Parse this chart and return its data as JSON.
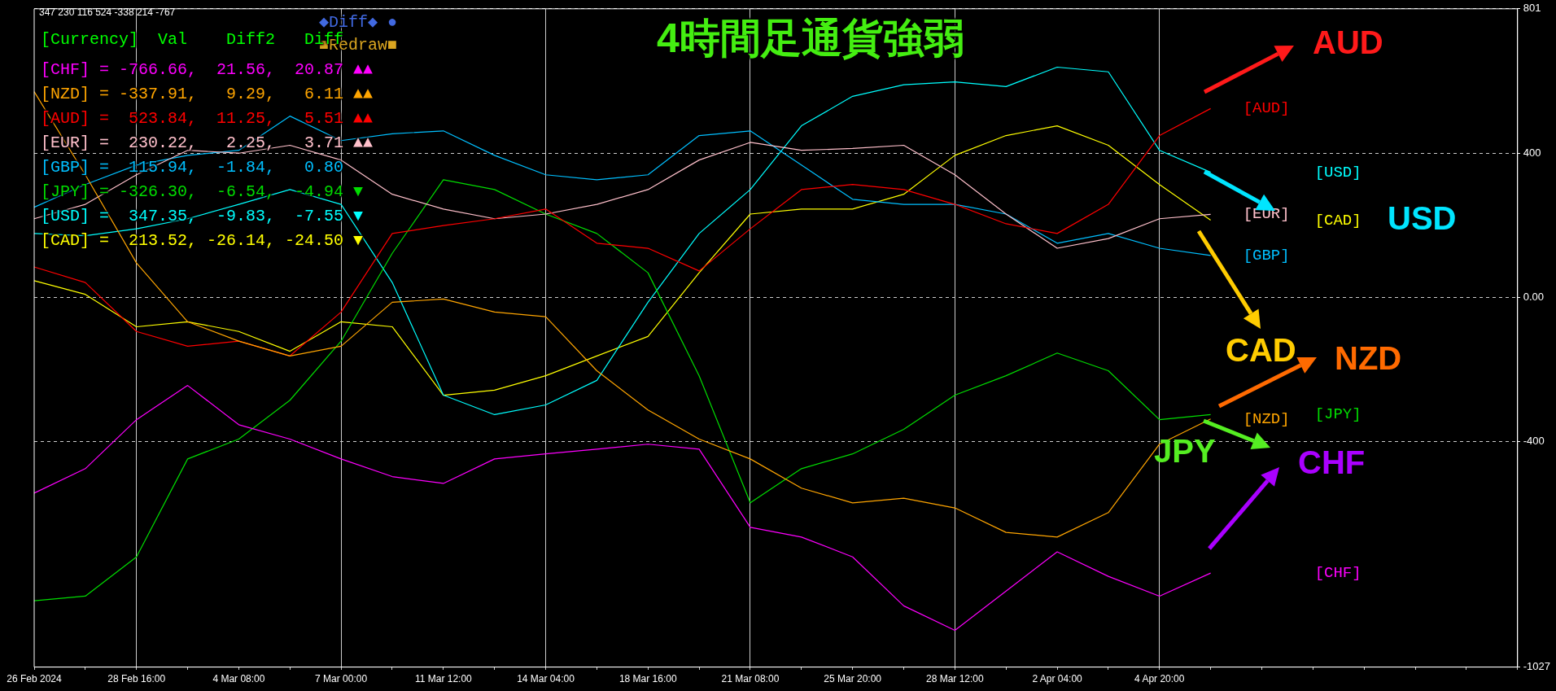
{
  "chart_data": {
    "type": "line",
    "title": "4時間足通貨強弱",
    "categories": [
      "26 Feb 2024",
      null,
      "28 Feb 16:00",
      null,
      "4 Mar 08:00",
      null,
      "7 Mar 00:00",
      null,
      "11 Mar 12:00",
      null,
      "14 Mar 04:00",
      null,
      "18 Mar 16:00",
      null,
      "21 Mar 08:00",
      null,
      "25 Mar 20:00",
      null,
      "28 Mar 12:00",
      null,
      "2 Apr 04:00",
      null,
      "4 Apr 20:00",
      null,
      null,
      null,
      null,
      null,
      null,
      null
    ],
    "series": [
      {
        "name": "[CHF]",
        "color": "#ff00ff",
        "values": [
          -544,
          -476,
          -340,
          -245,
          -354,
          -394,
          -449,
          -498,
          -517,
          -449,
          -435,
          -422,
          -408,
          -422,
          -639,
          -666,
          -721,
          -857,
          -925,
          -816,
          -707,
          -775,
          -830,
          -766,
          null,
          null,
          null,
          null,
          null,
          null
        ]
      },
      {
        "name": "[NZD]",
        "color": "#ffa500",
        "values": [
          571,
          340,
          95,
          -68,
          -122,
          -163,
          -136,
          -14,
          -5,
          -41,
          -54,
          -204,
          -313,
          -394,
          -449,
          -530,
          -571,
          -558,
          -585,
          -653,
          -666,
          -598,
          -408,
          -338,
          null,
          null,
          null,
          null,
          null,
          null
        ]
      },
      {
        "name": "[AUD]",
        "color": "#ff0000",
        "values": [
          84,
          41,
          -95,
          -136,
          -122,
          -163,
          -41,
          177,
          199,
          218,
          245,
          150,
          136,
          73,
          190,
          299,
          313,
          299,
          258,
          204,
          177,
          258,
          449,
          524,
          null,
          null,
          null,
          null,
          null,
          null
        ]
      },
      {
        "name": "[EUR]",
        "color": "#ffc0cb",
        "values": [
          218,
          258,
          340,
          408,
          400,
          422,
          381,
          286,
          245,
          218,
          231,
          258,
          299,
          381,
          430,
          408,
          413,
          422,
          340,
          231,
          136,
          163,
          218,
          230,
          null,
          null,
          null,
          null,
          null,
          null
        ]
      },
      {
        "name": "[GBP]",
        "color": "#00bfff",
        "values": [
          250,
          313,
          367,
          394,
          408,
          503,
          435,
          454,
          462,
          394,
          340,
          326,
          340,
          449,
          462,
          367,
          272,
          258,
          258,
          231,
          150,
          177,
          136,
          116,
          null,
          null,
          null,
          null,
          null,
          null
        ]
      },
      {
        "name": "[JPY]",
        "color": "#00dd00",
        "values": [
          -843,
          -830,
          -721,
          -449,
          -394,
          -286,
          -122,
          122,
          326,
          299,
          231,
          177,
          68,
          -218,
          -571,
          -476,
          -435,
          -367,
          -272,
          -218,
          -155,
          -204,
          -340,
          -326,
          null,
          null,
          null,
          null,
          null,
          null
        ]
      },
      {
        "name": "[USD]",
        "color": "#00ffff",
        "values": [
          177,
          171,
          190,
          218,
          258,
          299,
          258,
          41,
          -272,
          -326,
          -299,
          -231,
          -14,
          177,
          299,
          476,
          558,
          590,
          598,
          585,
          639,
          626,
          408,
          347,
          null,
          null,
          null,
          null,
          null,
          null
        ]
      },
      {
        "name": "[CAD]",
        "color": "#ffff00",
        "values": [
          46,
          8,
          -82,
          -68,
          -95,
          -150,
          -68,
          -82,
          -272,
          -258,
          -218,
          -163,
          -109,
          68,
          231,
          245,
          245,
          286,
          394,
          449,
          476,
          422,
          313,
          214,
          null,
          null,
          null,
          null,
          null,
          null
        ]
      }
    ],
    "ylim": [
      -1027,
      801
    ],
    "yticks": [
      801,
      400,
      {
        "value": 0,
        "label": "0.00"
      },
      -400,
      -1027
    ],
    "grid": true,
    "legend": false,
    "marker": "none",
    "line_style": "solid",
    "annotations": [
      "347 230 116 524 -338 214 -767",
      "◆Diff◆ ●",
      "■Redraw■",
      "[Currency]  Val    Diff2   Diff",
      "[CHF] = -766.66,  21.56,  20.87 ▲▲",
      "[NZD] = -337.91,   9.29,   6.11 ▲▲",
      "[AUD] =  523.84,  11.25,   5.51 ▲▲",
      "[EUR] =  230.22,   2.25,   3.71 ▲▲",
      "[GBP] =  115.94,  -1.84,   0.80",
      "[JPY] = -326.30,  -6.54,  -4.94 ▼",
      "[USD] =  347.35,  -9.83,  -7.55 ▼",
      "[CAD] =  213.52, -26.14, -24.50 ▼",
      "AUD",
      "USD",
      "CAD",
      "NZD",
      "JPY",
      "CHF"
    ]
  }
}
